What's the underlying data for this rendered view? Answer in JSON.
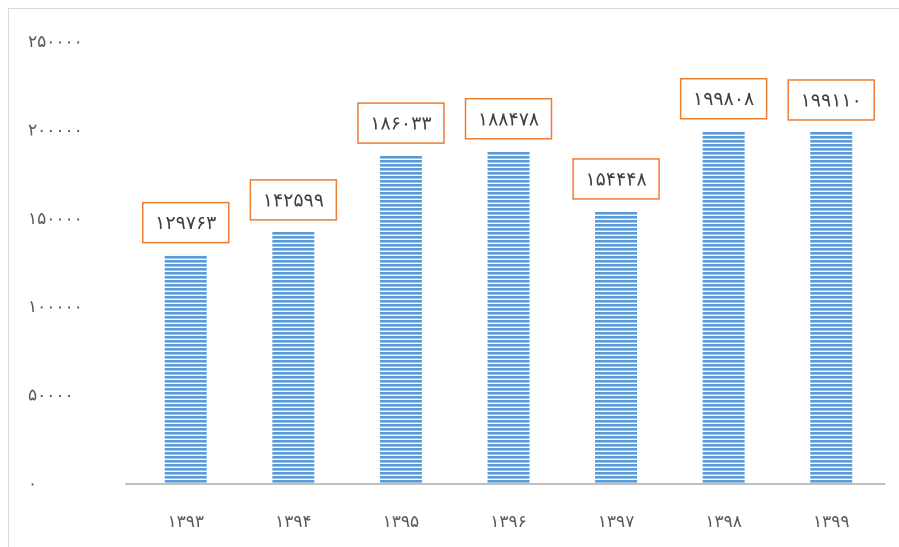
{
  "chart_data": {
    "type": "bar",
    "categories": [
      "۱۳۹۳",
      "۱۳۹۴",
      "۱۳۹۵",
      "۱۳۹۶",
      "۱۳۹۷",
      "۱۳۹۸",
      "۱۳۹۹"
    ],
    "values": [
      129763,
      142599,
      186033,
      188478,
      154448,
      199808,
      199110
    ],
    "value_labels": [
      "۱۲۹۷۶۳",
      "۱۴۲۵۹۹",
      "۱۸۶۰۳۳",
      "۱۸۸۴۷۸",
      "۱۵۴۴۴۸",
      "۱۹۹۸۰۸",
      "۱۹۹۱۱۰"
    ],
    "color": "#5b9bd5",
    "label_border_color": "#ed7d31",
    "ylim": [
      0,
      250000
    ],
    "yticks": [
      {
        "value": 0,
        "label": "۰"
      },
      {
        "value": 50000,
        "label": "۵۰۰۰۰"
      },
      {
        "value": 100000,
        "label": "۱۰۰۰۰۰"
      },
      {
        "value": 150000,
        "label": "۱۵۰۰۰۰"
      },
      {
        "value": 200000,
        "label": "۲۰۰۰۰۰"
      },
      {
        "value": 250000,
        "label": "۲۵۰۰۰۰"
      }
    ],
    "grid": false
  }
}
